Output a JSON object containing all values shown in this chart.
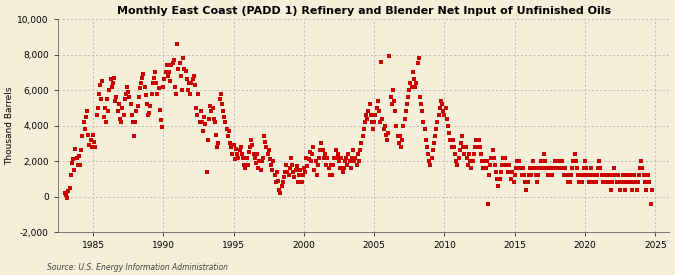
{
  "title": "Monthly East Coast (PADD 1) Refinery and Blender Net Input of Unfinished Oils",
  "ylabel": "Thousand Barrels",
  "source": "Source: U.S. Energy Information Administration",
  "background_color": "#f5eed8",
  "dot_color": "#cc0000",
  "dot_size": 6,
  "xlim": [
    1982.5,
    2026.0
  ],
  "ylim": [
    -2000,
    10000
  ],
  "yticks": [
    -2000,
    0,
    2000,
    4000,
    6000,
    8000,
    10000
  ],
  "xticks": [
    1985,
    1990,
    1995,
    2000,
    2005,
    2010,
    2015,
    2020,
    2025
  ],
  "data": [
    [
      1983.0,
      200
    ],
    [
      1983.08,
      100
    ],
    [
      1983.17,
      -100
    ],
    [
      1983.25,
      300
    ],
    [
      1983.33,
      500
    ],
    [
      1983.42,
      1200
    ],
    [
      1983.5,
      1900
    ],
    [
      1983.58,
      2100
    ],
    [
      1983.67,
      1500
    ],
    [
      1983.75,
      2700
    ],
    [
      1983.83,
      2200
    ],
    [
      1983.92,
      1800
    ],
    [
      1984.0,
      2300
    ],
    [
      1984.08,
      1800
    ],
    [
      1984.17,
      2600
    ],
    [
      1984.25,
      3400
    ],
    [
      1984.33,
      4200
    ],
    [
      1984.42,
      3800
    ],
    [
      1984.5,
      4500
    ],
    [
      1984.58,
      4800
    ],
    [
      1984.67,
      3500
    ],
    [
      1984.75,
      2900
    ],
    [
      1984.83,
      3200
    ],
    [
      1984.92,
      2800
    ],
    [
      1985.0,
      3500
    ],
    [
      1985.08,
      3100
    ],
    [
      1985.17,
      2800
    ],
    [
      1985.25,
      4600
    ],
    [
      1985.33,
      5000
    ],
    [
      1985.42,
      5800
    ],
    [
      1985.5,
      6300
    ],
    [
      1985.58,
      5500
    ],
    [
      1985.67,
      6500
    ],
    [
      1985.75,
      4500
    ],
    [
      1985.83,
      5000
    ],
    [
      1985.92,
      4200
    ],
    [
      1986.0,
      5500
    ],
    [
      1986.08,
      4800
    ],
    [
      1986.17,
      6000
    ],
    [
      1986.25,
      6600
    ],
    [
      1986.33,
      6200
    ],
    [
      1986.42,
      6400
    ],
    [
      1986.5,
      6700
    ],
    [
      1986.58,
      5400
    ],
    [
      1986.67,
      5600
    ],
    [
      1986.75,
      4800
    ],
    [
      1986.83,
      5200
    ],
    [
      1986.92,
      4400
    ],
    [
      1987.0,
      4200
    ],
    [
      1987.08,
      5000
    ],
    [
      1987.17,
      4600
    ],
    [
      1987.25,
      5500
    ],
    [
      1987.33,
      5800
    ],
    [
      1987.42,
      6200
    ],
    [
      1987.5,
      5900
    ],
    [
      1987.58,
      5600
    ],
    [
      1987.67,
      5200
    ],
    [
      1987.75,
      4600
    ],
    [
      1987.83,
      4200
    ],
    [
      1987.92,
      3400
    ],
    [
      1988.0,
      4200
    ],
    [
      1988.08,
      4800
    ],
    [
      1988.17,
      5100
    ],
    [
      1988.25,
      5600
    ],
    [
      1988.33,
      6100
    ],
    [
      1988.42,
      6400
    ],
    [
      1988.5,
      6700
    ],
    [
      1988.58,
      6900
    ],
    [
      1988.67,
      6200
    ],
    [
      1988.75,
      5700
    ],
    [
      1988.83,
      5200
    ],
    [
      1988.92,
      4600
    ],
    [
      1989.0,
      4700
    ],
    [
      1989.08,
      5100
    ],
    [
      1989.17,
      5800
    ],
    [
      1989.25,
      6400
    ],
    [
      1989.33,
      6700
    ],
    [
      1989.42,
      7000
    ],
    [
      1989.5,
      6400
    ],
    [
      1989.58,
      5800
    ],
    [
      1989.67,
      6100
    ],
    [
      1989.75,
      4900
    ],
    [
      1989.83,
      4300
    ],
    [
      1989.92,
      3900
    ],
    [
      1990.0,
      6200
    ],
    [
      1990.08,
      6600
    ],
    [
      1990.17,
      7000
    ],
    [
      1990.25,
      7400
    ],
    [
      1990.33,
      6800
    ],
    [
      1990.42,
      7000
    ],
    [
      1990.5,
      6500
    ],
    [
      1990.58,
      7400
    ],
    [
      1990.67,
      7500
    ],
    [
      1990.75,
      7700
    ],
    [
      1990.83,
      6200
    ],
    [
      1990.92,
      5800
    ],
    [
      1991.0,
      8600
    ],
    [
      1991.08,
      7200
    ],
    [
      1991.17,
      7500
    ],
    [
      1991.25,
      6800
    ],
    [
      1991.33,
      6000
    ],
    [
      1991.42,
      7800
    ],
    [
      1991.5,
      7200
    ],
    [
      1991.58,
      7100
    ],
    [
      1991.67,
      6600
    ],
    [
      1991.75,
      6000
    ],
    [
      1991.83,
      6400
    ],
    [
      1991.92,
      5800
    ],
    [
      1992.0,
      6400
    ],
    [
      1992.08,
      6600
    ],
    [
      1992.17,
      6800
    ],
    [
      1992.25,
      6300
    ],
    [
      1992.33,
      5000
    ],
    [
      1992.42,
      4600
    ],
    [
      1992.5,
      5800
    ],
    [
      1992.58,
      4200
    ],
    [
      1992.67,
      4800
    ],
    [
      1992.75,
      4200
    ],
    [
      1992.83,
      3700
    ],
    [
      1992.92,
      4500
    ],
    [
      1993.0,
      4100
    ],
    [
      1993.08,
      1400
    ],
    [
      1993.17,
      3200
    ],
    [
      1993.25,
      4400
    ],
    [
      1993.33,
      5100
    ],
    [
      1993.42,
      4800
    ],
    [
      1993.5,
      5000
    ],
    [
      1993.58,
      4400
    ],
    [
      1993.67,
      4200
    ],
    [
      1993.75,
      3500
    ],
    [
      1993.83,
      2800
    ],
    [
      1993.92,
      3000
    ],
    [
      1994.0,
      5500
    ],
    [
      1994.08,
      5800
    ],
    [
      1994.17,
      5200
    ],
    [
      1994.25,
      4800
    ],
    [
      1994.33,
      4500
    ],
    [
      1994.42,
      4200
    ],
    [
      1994.5,
      3800
    ],
    [
      1994.58,
      3400
    ],
    [
      1994.67,
      3700
    ],
    [
      1994.75,
      3000
    ],
    [
      1994.83,
      2800
    ],
    [
      1994.92,
      2400
    ],
    [
      1995.0,
      2900
    ],
    [
      1995.08,
      2100
    ],
    [
      1995.17,
      2700
    ],
    [
      1995.25,
      2400
    ],
    [
      1995.33,
      2200
    ],
    [
      1995.42,
      2600
    ],
    [
      1995.5,
      2800
    ],
    [
      1995.58,
      2400
    ],
    [
      1995.67,
      2200
    ],
    [
      1995.75,
      1800
    ],
    [
      1995.83,
      1600
    ],
    [
      1995.92,
      2200
    ],
    [
      1996.0,
      1800
    ],
    [
      1996.08,
      2500
    ],
    [
      1996.17,
      2800
    ],
    [
      1996.25,
      3200
    ],
    [
      1996.33,
      2900
    ],
    [
      1996.42,
      2400
    ],
    [
      1996.5,
      2200
    ],
    [
      1996.58,
      1900
    ],
    [
      1996.67,
      2400
    ],
    [
      1996.75,
      1600
    ],
    [
      1996.83,
      2000
    ],
    [
      1996.92,
      1500
    ],
    [
      1997.0,
      2000
    ],
    [
      1997.08,
      2200
    ],
    [
      1997.17,
      3400
    ],
    [
      1997.25,
      3100
    ],
    [
      1997.33,
      2800
    ],
    [
      1997.42,
      2400
    ],
    [
      1997.5,
      2600
    ],
    [
      1997.58,
      2100
    ],
    [
      1997.67,
      1800
    ],
    [
      1997.75,
      1500
    ],
    [
      1997.83,
      2000
    ],
    [
      1997.92,
      1200
    ],
    [
      1998.0,
      800
    ],
    [
      1998.08,
      1400
    ],
    [
      1998.17,
      900
    ],
    [
      1998.25,
      400
    ],
    [
      1998.33,
      200
    ],
    [
      1998.42,
      600
    ],
    [
      1998.5,
      800
    ],
    [
      1998.58,
      1100
    ],
    [
      1998.67,
      1400
    ],
    [
      1998.75,
      1800
    ],
    [
      1998.83,
      1400
    ],
    [
      1998.92,
      1200
    ],
    [
      1999.0,
      1600
    ],
    [
      1999.08,
      2200
    ],
    [
      1999.17,
      1800
    ],
    [
      1999.25,
      1400
    ],
    [
      1999.33,
      1100
    ],
    [
      1999.42,
      1500
    ],
    [
      1999.5,
      1700
    ],
    [
      1999.58,
      800
    ],
    [
      1999.67,
      1200
    ],
    [
      1999.75,
      1500
    ],
    [
      1999.83,
      800
    ],
    [
      1999.92,
      1200
    ],
    [
      2000.0,
      1600
    ],
    [
      2000.08,
      1400
    ],
    [
      2000.17,
      2200
    ],
    [
      2000.25,
      1700
    ],
    [
      2000.33,
      2100
    ],
    [
      2000.42,
      2500
    ],
    [
      2000.5,
      2000
    ],
    [
      2000.58,
      2400
    ],
    [
      2000.67,
      2800
    ],
    [
      2000.75,
      1500
    ],
    [
      2000.83,
      2000
    ],
    [
      2000.92,
      1200
    ],
    [
      2001.0,
      1800
    ],
    [
      2001.08,
      2200
    ],
    [
      2001.17,
      2600
    ],
    [
      2001.25,
      3000
    ],
    [
      2001.33,
      2600
    ],
    [
      2001.42,
      2200
    ],
    [
      2001.5,
      2400
    ],
    [
      2001.58,
      1800
    ],
    [
      2001.67,
      2200
    ],
    [
      2001.75,
      1600
    ],
    [
      2001.83,
      1200
    ],
    [
      2001.92,
      1800
    ],
    [
      2002.0,
      1200
    ],
    [
      2002.08,
      1800
    ],
    [
      2002.17,
      2200
    ],
    [
      2002.25,
      2600
    ],
    [
      2002.33,
      2200
    ],
    [
      2002.42,
      2400
    ],
    [
      2002.5,
      2000
    ],
    [
      2002.58,
      1600
    ],
    [
      2002.67,
      2200
    ],
    [
      2002.75,
      1400
    ],
    [
      2002.83,
      1600
    ],
    [
      2002.92,
      2000
    ],
    [
      2003.0,
      2200
    ],
    [
      2003.08,
      1800
    ],
    [
      2003.17,
      2400
    ],
    [
      2003.25,
      2000
    ],
    [
      2003.33,
      1600
    ],
    [
      2003.42,
      2200
    ],
    [
      2003.5,
      2600
    ],
    [
      2003.58,
      2000
    ],
    [
      2003.67,
      2200
    ],
    [
      2003.75,
      1800
    ],
    [
      2003.83,
      2400
    ],
    [
      2003.92,
      2000
    ],
    [
      2004.0,
      2600
    ],
    [
      2004.08,
      3000
    ],
    [
      2004.17,
      3400
    ],
    [
      2004.25,
      3800
    ],
    [
      2004.33,
      4200
    ],
    [
      2004.42,
      4600
    ],
    [
      2004.5,
      4400
    ],
    [
      2004.58,
      4800
    ],
    [
      2004.67,
      5200
    ],
    [
      2004.75,
      4600
    ],
    [
      2004.83,
      4200
    ],
    [
      2004.92,
      3800
    ],
    [
      2005.0,
      4200
    ],
    [
      2005.08,
      4600
    ],
    [
      2005.17,
      5000
    ],
    [
      2005.25,
      5400
    ],
    [
      2005.33,
      4800
    ],
    [
      2005.42,
      4200
    ],
    [
      2005.5,
      7600
    ],
    [
      2005.58,
      4400
    ],
    [
      2005.67,
      3800
    ],
    [
      2005.75,
      4000
    ],
    [
      2005.83,
      3500
    ],
    [
      2005.92,
      3200
    ],
    [
      2006.0,
      3600
    ],
    [
      2006.08,
      7900
    ],
    [
      2006.17,
      5600
    ],
    [
      2006.25,
      5200
    ],
    [
      2006.33,
      6000
    ],
    [
      2006.42,
      5400
    ],
    [
      2006.5,
      4800
    ],
    [
      2006.58,
      4000
    ],
    [
      2006.67,
      3400
    ],
    [
      2006.75,
      3000
    ],
    [
      2006.83,
      3400
    ],
    [
      2006.92,
      2800
    ],
    [
      2007.0,
      3200
    ],
    [
      2007.08,
      4000
    ],
    [
      2007.17,
      4400
    ],
    [
      2007.25,
      4800
    ],
    [
      2007.33,
      5200
    ],
    [
      2007.42,
      5600
    ],
    [
      2007.5,
      6000
    ],
    [
      2007.58,
      6400
    ],
    [
      2007.67,
      6200
    ],
    [
      2007.75,
      7000
    ],
    [
      2007.83,
      6600
    ],
    [
      2007.92,
      6200
    ],
    [
      2008.0,
      6400
    ],
    [
      2008.08,
      7500
    ],
    [
      2008.17,
      7800
    ],
    [
      2008.25,
      5600
    ],
    [
      2008.33,
      5200
    ],
    [
      2008.42,
      4800
    ],
    [
      2008.5,
      4200
    ],
    [
      2008.58,
      3800
    ],
    [
      2008.67,
      3200
    ],
    [
      2008.75,
      2800
    ],
    [
      2008.83,
      2400
    ],
    [
      2008.92,
      2000
    ],
    [
      2009.0,
      1800
    ],
    [
      2009.08,
      2200
    ],
    [
      2009.17,
      2600
    ],
    [
      2009.25,
      3000
    ],
    [
      2009.33,
      3400
    ],
    [
      2009.42,
      3800
    ],
    [
      2009.5,
      4200
    ],
    [
      2009.58,
      4600
    ],
    [
      2009.67,
      5000
    ],
    [
      2009.75,
      5400
    ],
    [
      2009.83,
      5200
    ],
    [
      2009.92,
      4800
    ],
    [
      2010.0,
      4600
    ],
    [
      2010.08,
      5000
    ],
    [
      2010.17,
      4400
    ],
    [
      2010.25,
      4000
    ],
    [
      2010.33,
      3600
    ],
    [
      2010.42,
      3200
    ],
    [
      2010.5,
      2800
    ],
    [
      2010.58,
      3200
    ],
    [
      2010.67,
      2800
    ],
    [
      2010.75,
      2400
    ],
    [
      2010.83,
      2000
    ],
    [
      2010.92,
      1800
    ],
    [
      2011.0,
      2200
    ],
    [
      2011.08,
      2600
    ],
    [
      2011.17,
      3000
    ],
    [
      2011.25,
      3400
    ],
    [
      2011.33,
      2800
    ],
    [
      2011.42,
      2400
    ],
    [
      2011.5,
      2800
    ],
    [
      2011.58,
      2200
    ],
    [
      2011.67,
      1800
    ],
    [
      2011.75,
      2400
    ],
    [
      2011.83,
      2000
    ],
    [
      2011.92,
      1600
    ],
    [
      2012.0,
      2000
    ],
    [
      2012.08,
      2400
    ],
    [
      2012.17,
      2800
    ],
    [
      2012.25,
      3200
    ],
    [
      2012.33,
      2800
    ],
    [
      2012.42,
      3200
    ],
    [
      2012.5,
      2800
    ],
    [
      2012.58,
      2400
    ],
    [
      2012.67,
      2000
    ],
    [
      2012.75,
      1600
    ],
    [
      2012.83,
      2000
    ],
    [
      2012.92,
      1600
    ],
    [
      2013.0,
      2000
    ],
    [
      2013.08,
      -400
    ],
    [
      2013.17,
      1200
    ],
    [
      2013.25,
      1800
    ],
    [
      2013.33,
      2200
    ],
    [
      2013.42,
      2600
    ],
    [
      2013.5,
      2200
    ],
    [
      2013.58,
      1800
    ],
    [
      2013.67,
      1400
    ],
    [
      2013.75,
      1000
    ],
    [
      2013.83,
      600
    ],
    [
      2013.92,
      1000
    ],
    [
      2014.0,
      1400
    ],
    [
      2014.08,
      1800
    ],
    [
      2014.17,
      2200
    ],
    [
      2014.25,
      1800
    ],
    [
      2014.33,
      2200
    ],
    [
      2014.42,
      1800
    ],
    [
      2014.5,
      1400
    ],
    [
      2014.58,
      1800
    ],
    [
      2014.67,
      1400
    ],
    [
      2014.75,
      1000
    ],
    [
      2014.83,
      1400
    ],
    [
      2014.92,
      800
    ],
    [
      2015.0,
      1200
    ],
    [
      2015.08,
      1600
    ],
    [
      2015.17,
      2000
    ],
    [
      2015.25,
      1600
    ],
    [
      2015.33,
      2000
    ],
    [
      2015.42,
      1600
    ],
    [
      2015.5,
      1200
    ],
    [
      2015.58,
      1600
    ],
    [
      2015.67,
      1200
    ],
    [
      2015.75,
      800
    ],
    [
      2015.83,
      400
    ],
    [
      2015.92,
      800
    ],
    [
      2016.0,
      1200
    ],
    [
      2016.08,
      1600
    ],
    [
      2016.17,
      1200
    ],
    [
      2016.25,
      1600
    ],
    [
      2016.33,
      2000
    ],
    [
      2016.42,
      1600
    ],
    [
      2016.5,
      1200
    ],
    [
      2016.58,
      800
    ],
    [
      2016.67,
      1200
    ],
    [
      2016.75,
      1600
    ],
    [
      2016.83,
      2000
    ],
    [
      2016.92,
      1600
    ],
    [
      2017.0,
      2000
    ],
    [
      2017.08,
      2400
    ],
    [
      2017.17,
      2000
    ],
    [
      2017.25,
      1600
    ],
    [
      2017.33,
      1200
    ],
    [
      2017.42,
      1600
    ],
    [
      2017.5,
      1200
    ],
    [
      2017.58,
      1600
    ],
    [
      2017.67,
      1200
    ],
    [
      2017.75,
      1600
    ],
    [
      2017.83,
      2000
    ],
    [
      2017.92,
      1600
    ],
    [
      2018.0,
      2000
    ],
    [
      2018.08,
      1600
    ],
    [
      2018.17,
      2000
    ],
    [
      2018.25,
      1600
    ],
    [
      2018.33,
      2000
    ],
    [
      2018.42,
      1600
    ],
    [
      2018.5,
      1200
    ],
    [
      2018.58,
      1600
    ],
    [
      2018.67,
      1200
    ],
    [
      2018.75,
      800
    ],
    [
      2018.83,
      1200
    ],
    [
      2018.92,
      800
    ],
    [
      2019.0,
      1200
    ],
    [
      2019.08,
      1600
    ],
    [
      2019.17,
      2000
    ],
    [
      2019.25,
      2400
    ],
    [
      2019.33,
      2000
    ],
    [
      2019.42,
      1600
    ],
    [
      2019.5,
      1200
    ],
    [
      2019.58,
      800
    ],
    [
      2019.67,
      1200
    ],
    [
      2019.75,
      800
    ],
    [
      2019.83,
      1200
    ],
    [
      2019.92,
      1600
    ],
    [
      2020.0,
      2000
    ],
    [
      2020.08,
      1600
    ],
    [
      2020.17,
      1200
    ],
    [
      2020.25,
      800
    ],
    [
      2020.33,
      1200
    ],
    [
      2020.42,
      1600
    ],
    [
      2020.5,
      1200
    ],
    [
      2020.58,
      800
    ],
    [
      2020.67,
      1200
    ],
    [
      2020.75,
      800
    ],
    [
      2020.83,
      1200
    ],
    [
      2020.92,
      1600
    ],
    [
      2021.0,
      2000
    ],
    [
      2021.08,
      1600
    ],
    [
      2021.17,
      1200
    ],
    [
      2021.25,
      800
    ],
    [
      2021.33,
      1200
    ],
    [
      2021.42,
      800
    ],
    [
      2021.5,
      1200
    ],
    [
      2021.58,
      800
    ],
    [
      2021.67,
      1200
    ],
    [
      2021.75,
      800
    ],
    [
      2021.83,
      400
    ],
    [
      2021.92,
      800
    ],
    [
      2022.0,
      1200
    ],
    [
      2022.08,
      1600
    ],
    [
      2022.17,
      1200
    ],
    [
      2022.25,
      800
    ],
    [
      2022.33,
      1200
    ],
    [
      2022.42,
      800
    ],
    [
      2022.5,
      400
    ],
    [
      2022.58,
      800
    ],
    [
      2022.67,
      1200
    ],
    [
      2022.75,
      800
    ],
    [
      2022.83,
      400
    ],
    [
      2022.92,
      800
    ],
    [
      2023.0,
      1200
    ],
    [
      2023.08,
      800
    ],
    [
      2023.17,
      1200
    ],
    [
      2023.25,
      800
    ],
    [
      2023.33,
      400
    ],
    [
      2023.42,
      800
    ],
    [
      2023.5,
      1200
    ],
    [
      2023.58,
      800
    ],
    [
      2023.67,
      400
    ],
    [
      2023.75,
      800
    ],
    [
      2023.83,
      1200
    ],
    [
      2023.92,
      1600
    ],
    [
      2024.0,
      2000
    ],
    [
      2024.08,
      1600
    ],
    [
      2024.17,
      1200
    ],
    [
      2024.25,
      800
    ],
    [
      2024.33,
      400
    ],
    [
      2024.42,
      800
    ],
    [
      2024.5,
      1200
    ],
    [
      2024.58,
      800
    ],
    [
      2024.67,
      -400
    ],
    [
      2024.75,
      400
    ]
  ]
}
